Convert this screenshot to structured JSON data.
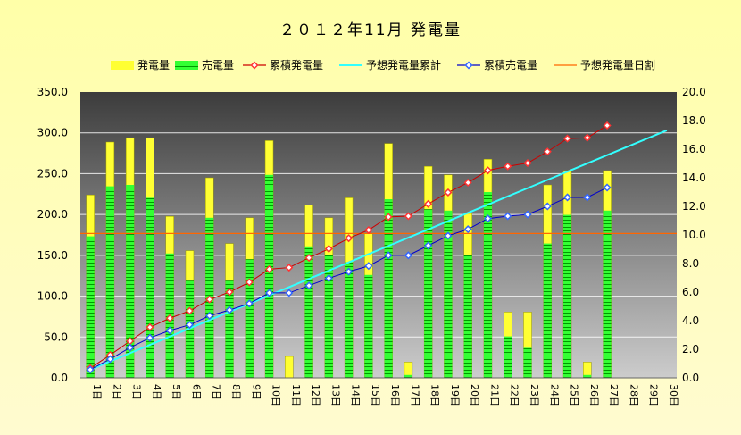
{
  "chart_data": {
    "type": "bar",
    "title": "２０１２年11月 発電量",
    "categories": [
      "1日",
      "2日",
      "3日",
      "4日",
      "5日",
      "6日",
      "7日",
      "8日",
      "9日",
      "10日",
      "11日",
      "12日",
      "13日",
      "14日",
      "15日",
      "16日",
      "17日",
      "18日",
      "19日",
      "20日",
      "21日",
      "22日",
      "23日",
      "24日",
      "25日",
      "26日",
      "27日",
      "28日",
      "29日",
      "30日"
    ],
    "left_axis": {
      "min": 0,
      "max": 350,
      "step": 50,
      "tick_labels": [
        "0.0",
        "50.0",
        "100.0",
        "150.0",
        "200.0",
        "250.0",
        "300.0",
        "350.0"
      ]
    },
    "right_axis": {
      "min": 0,
      "max": 20,
      "step": 2,
      "tick_labels": [
        "0.0",
        "2.0",
        "4.0",
        "6.0",
        "8.0",
        "10.0",
        "12.0",
        "14.0",
        "16.0",
        "18.0",
        "20.0"
      ]
    },
    "legend_position": "top",
    "grid": true,
    "series": [
      {
        "name": "発電量",
        "kind": "bar",
        "axis": "right",
        "color": "#ffff33",
        "values": [
          12.8,
          16.5,
          16.8,
          16.8,
          11.3,
          8.9,
          14.0,
          9.4,
          11.2,
          16.6,
          1.5,
          12.1,
          11.2,
          12.6,
          10.1,
          16.4,
          1.1,
          14.8,
          14.2,
          11.5,
          15.3,
          4.6,
          4.6,
          13.5,
          14.5,
          1.1,
          14.5,
          null,
          null,
          null
        ]
      },
      {
        "name": "売電量",
        "kind": "bar",
        "axis": "right",
        "color": "#33ff33",
        "values": [
          9.9,
          13.4,
          13.5,
          12.6,
          8.7,
          6.8,
          11.2,
          6.8,
          8.3,
          14.2,
          0.0,
          9.2,
          8.6,
          8.1,
          7.2,
          12.5,
          0.2,
          11.8,
          11.7,
          8.6,
          13.0,
          2.9,
          2.1,
          9.4,
          11.4,
          0.2,
          11.7,
          null,
          null,
          null
        ]
      },
      {
        "name": "累積発電量",
        "kind": "line",
        "axis": "left",
        "color": "#cc0000",
        "marker_color": "#ff3333",
        "values": [
          12,
          28,
          45,
          62,
          73,
          82,
          96,
          105,
          117,
          133,
          135,
          147,
          158,
          171,
          181,
          197,
          198,
          213,
          227,
          239,
          254,
          259,
          263,
          277,
          293,
          294,
          309,
          null,
          null,
          null
        ]
      },
      {
        "name": "予想発電量累計",
        "kind": "line",
        "axis": "left",
        "color": "#33ffff",
        "values": [
          10.1,
          20.2,
          30.3,
          40.4,
          50.5,
          60.6,
          70.7,
          80.8,
          90.9,
          101.0,
          111.1,
          121.2,
          131.3,
          141.4,
          151.5,
          161.6,
          171.7,
          181.8,
          191.9,
          202.0,
          212.1,
          222.2,
          232.3,
          242.4,
          252.5,
          262.6,
          272.7,
          282.8,
          292.9,
          303.0
        ]
      },
      {
        "name": "累積売電量",
        "kind": "line",
        "axis": "left",
        "color": "#0000cc",
        "marker_color": "#3366ff",
        "values": [
          10,
          23,
          37,
          49,
          58,
          65,
          76,
          83,
          91,
          104,
          104,
          113,
          122,
          130,
          137,
          150,
          150,
          162,
          174,
          182,
          195,
          198,
          200,
          210,
          221,
          221,
          233,
          null,
          null,
          null
        ]
      },
      {
        "name": "予想発電量日割",
        "kind": "line",
        "axis": "right",
        "color": "#ff6600",
        "values": [
          10.1,
          10.1,
          10.1,
          10.1,
          10.1,
          10.1,
          10.1,
          10.1,
          10.1,
          10.1,
          10.1,
          10.1,
          10.1,
          10.1,
          10.1,
          10.1,
          10.1,
          10.1,
          10.1,
          10.1,
          10.1,
          10.1,
          10.1,
          10.1,
          10.1,
          10.1,
          10.1,
          10.1,
          10.1,
          10.1
        ]
      }
    ]
  }
}
